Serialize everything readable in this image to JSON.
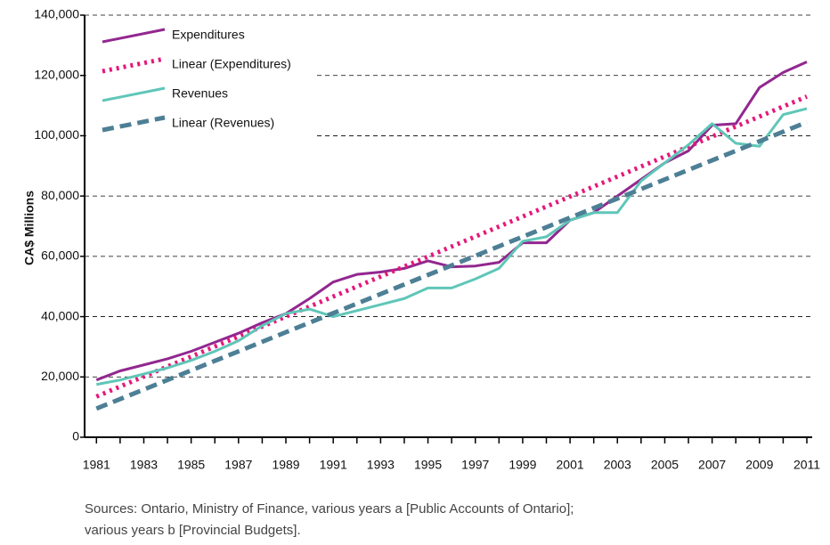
{
  "chart_data": {
    "type": "line",
    "ylabel": "CA$ Millions",
    "x": [
      1981,
      1982,
      1983,
      1984,
      1985,
      1986,
      1987,
      1988,
      1989,
      1990,
      1991,
      1992,
      1993,
      1994,
      1995,
      1996,
      1997,
      1998,
      1999,
      2000,
      2001,
      2002,
      2003,
      2004,
      2005,
      2006,
      2007,
      2008,
      2009,
      2010,
      2011
    ],
    "xlim": [
      1980.5,
      2011
    ],
    "xticks": [
      1981,
      1983,
      1985,
      1987,
      1989,
      1991,
      1993,
      1995,
      1997,
      1999,
      2001,
      2003,
      2005,
      2007,
      2009,
      2011
    ],
    "ylim": [
      0,
      140000
    ],
    "yticks": [
      0,
      {
        "value": 20000,
        "label": "20,000"
      },
      {
        "value": 40000,
        "label": "40,000"
      },
      {
        "value": 60000,
        "label": "60,000"
      },
      {
        "value": 80000,
        "label": "80,000"
      },
      {
        "value": 100000,
        "label": "100,000"
      },
      {
        "value": 120000,
        "label": "120,000"
      },
      {
        "value": 140000,
        "label": "140,000"
      }
    ],
    "grid": true,
    "legend": "top-left",
    "series": [
      {
        "name": "Expenditures",
        "color": "#92278f",
        "style": "solid",
        "values": [
          19000,
          22000,
          24000,
          26000,
          28500,
          31500,
          34500,
          38000,
          41000,
          46000,
          51500,
          54000,
          54800,
          56000,
          58500,
          56500,
          56800,
          58000,
          64500,
          64500,
          72000,
          74500,
          80000,
          85500,
          91000,
          95000,
          103500,
          104000,
          116000,
          121000,
          124500
        ]
      },
      {
        "name": "Linear (Expenditures)",
        "color": "#e6177a",
        "style": "dotted",
        "x": [
          1981,
          2011
        ],
        "values": [
          13500,
          113000
        ]
      },
      {
        "name": "Revenues",
        "color": "#5fc6b8",
        "style": "solid",
        "values": [
          17500,
          19000,
          21000,
          23000,
          25500,
          28500,
          32000,
          37000,
          41000,
          42500,
          40000,
          42000,
          44000,
          46000,
          49500,
          49500,
          52500,
          56000,
          65000,
          66500,
          72000,
          74500,
          74500,
          85000,
          91000,
          97000,
          104000,
          97500,
          96500,
          107000,
          109000
        ]
      },
      {
        "name": "Linear (Revenues)",
        "color": "#4d7f95",
        "style": "dashed",
        "x": [
          1981,
          2011
        ],
        "values": [
          9500,
          104500
        ]
      }
    ],
    "source": [
      "Sources: Ontario, Ministry of Finance, various years a [Public Accounts of Ontario];",
      "various years b [Provincial Budgets]."
    ]
  }
}
